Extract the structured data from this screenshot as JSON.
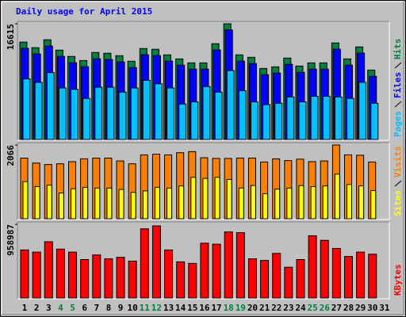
{
  "chart_data": [
    {
      "type": "bar",
      "title": "Daily usage for April 2015",
      "ylim": [
        0,
        16615
      ],
      "yticks": [
        16615
      ],
      "series": [
        {
          "name": "Hits",
          "color": "#008040",
          "values": [
            13980,
            13180,
            14320,
            12830,
            11920,
            11340,
            12490,
            12380,
            12030,
            11230,
            13060,
            12950,
            12150,
            11570,
            11000,
            11000,
            13750,
            16615,
            12150,
            11800,
            10200,
            10430,
            11690,
            10540,
            11000,
            11000,
            13860,
            11570,
            13290,
            9970,
            null
          ]
        },
        {
          "name": "Files",
          "color": "#0000ff",
          "values": [
            13080,
            12280,
            13420,
            11930,
            11020,
            10440,
            11590,
            11480,
            11130,
            10330,
            12160,
            12050,
            11250,
            10670,
            10100,
            10100,
            12850,
            15740,
            11250,
            10900,
            9300,
            9530,
            10790,
            9640,
            10100,
            10100,
            12960,
            10670,
            12390,
            9070,
            null
          ]
        },
        {
          "name": "Pages",
          "color": "#00c0ff",
          "values": [
            8700,
            8200,
            9600,
            7400,
            7200,
            5900,
            7500,
            7500,
            6800,
            7400,
            8500,
            8000,
            7400,
            5100,
            5400,
            7600,
            6800,
            9900,
            7000,
            5400,
            5000,
            5200,
            6100,
            5400,
            6200,
            6200,
            6100,
            5900,
            8200,
            5200,
            null
          ]
        }
      ]
    },
    {
      "type": "bar",
      "ylim": [
        0,
        2066
      ],
      "yticks": [
        2066
      ],
      "series": [
        {
          "name": "Visits",
          "color": "#ff8000",
          "values": [
            1700,
            1560,
            1520,
            1540,
            1600,
            1680,
            1700,
            1700,
            1620,
            1540,
            1790,
            1810,
            1790,
            1850,
            1880,
            1710,
            1690,
            1690,
            1700,
            1700,
            1590,
            1680,
            1630,
            1670,
            1600,
            1620,
            2066,
            1790,
            1780,
            1590,
            null
          ]
        },
        {
          "name": "Sites",
          "color": "#ffff00",
          "values": [
            1040,
            900,
            940,
            720,
            840,
            880,
            860,
            860,
            820,
            740,
            780,
            880,
            860,
            920,
            1160,
            1130,
            1160,
            1100,
            860,
            930,
            700,
            830,
            860,
            930,
            900,
            920,
            1250,
            960,
            920,
            790,
            null
          ]
        }
      ]
    },
    {
      "type": "bar",
      "ylim": [
        0,
        958987
      ],
      "yticks": [
        958987
      ],
      "categories": [
        "1",
        "2",
        "3",
        "4",
        "5",
        "6",
        "7",
        "8",
        "9",
        "10",
        "11",
        "12",
        "13",
        "14",
        "15",
        "16",
        "17",
        "18",
        "19",
        "20",
        "21",
        "22",
        "23",
        "24",
        "25",
        "26",
        "27",
        "28",
        "29",
        "30",
        "31"
      ],
      "category_colors": [
        "#000000",
        "#000000",
        "#000000",
        "#008040",
        "#008040",
        "#000000",
        "#000000",
        "#000000",
        "#000000",
        "#000000",
        "#008040",
        "#008040",
        "#000000",
        "#000000",
        "#000000",
        "#000000",
        "#000000",
        "#008040",
        "#008040",
        "#000000",
        "#000000",
        "#000000",
        "#000000",
        "#000000",
        "#008040",
        "#008040",
        "#000000",
        "#000000",
        "#000000",
        "#000000",
        "#000000"
      ],
      "series": [
        {
          "name": "KBytes",
          "color": "#ff0000",
          "values": [
            625000,
            597000,
            732000,
            636000,
            597000,
            500000,
            560000,
            510000,
            530000,
            480000,
            900000,
            938000,
            625000,
            470000,
            450000,
            713000,
            700000,
            860000,
            850000,
            510000,
            490000,
            580000,
            400000,
            500000,
            810000,
            750000,
            645000,
            540000,
            597000,
            570000,
            null
          ]
        }
      ]
    }
  ]
}
